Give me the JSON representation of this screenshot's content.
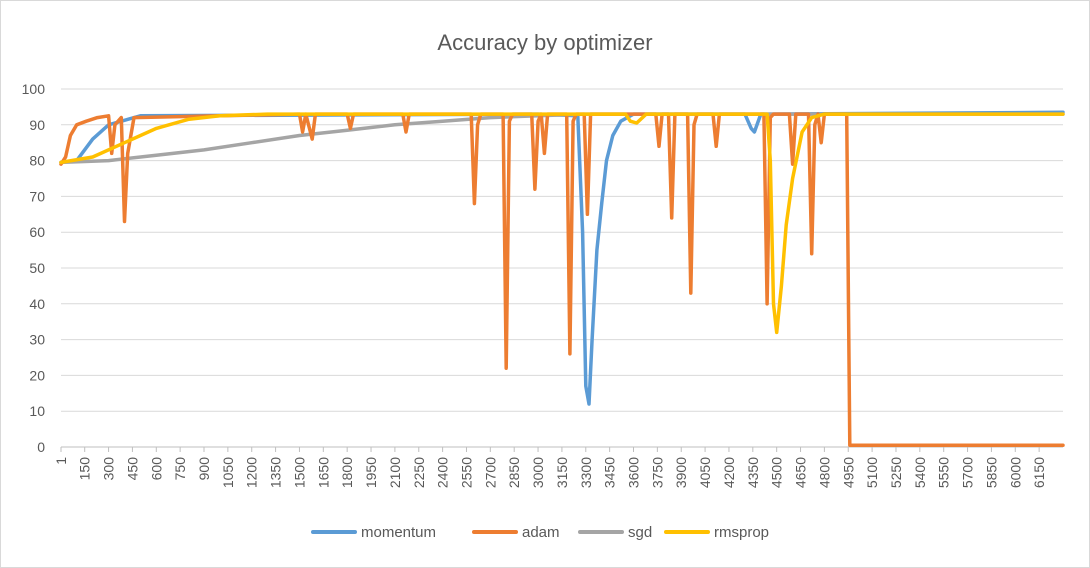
{
  "chart_data": {
    "type": "line",
    "title": "Accuracy by optimizer",
    "xlabel": "",
    "ylabel": "",
    "xlim": [
      1,
      6300
    ],
    "ylim": [
      0,
      100
    ],
    "y_ticks": [
      0,
      10,
      20,
      30,
      40,
      50,
      60,
      70,
      80,
      90,
      100
    ],
    "x_tick_labels": [
      "1",
      "150",
      "300",
      "450",
      "600",
      "750",
      "900",
      "1050",
      "1200",
      "1350",
      "1500",
      "1650",
      "1800",
      "1950",
      "2100",
      "2250",
      "2400",
      "2550",
      "2700",
      "2850",
      "3000",
      "3150",
      "3300",
      "3450",
      "3600",
      "3750",
      "3900",
      "4050",
      "4200",
      "4350",
      "4500",
      "4650",
      "4800",
      "4950",
      "5100",
      "5250",
      "5400",
      "5550",
      "5700",
      "5850",
      "6000",
      "6150"
    ],
    "grid": "horizontal",
    "legend": "bottom",
    "series": [
      {
        "name": "momentum",
        "color": "#5B9BD5",
        "points": [
          [
            1,
            79.5
          ],
          [
            100,
            80
          ],
          [
            200,
            86
          ],
          [
            300,
            90
          ],
          [
            500,
            92.5
          ],
          [
            3000,
            93
          ],
          [
            3250,
            92.5
          ],
          [
            3280,
            60
          ],
          [
            3300,
            17
          ],
          [
            3320,
            12
          ],
          [
            3340,
            30
          ],
          [
            3370,
            55
          ],
          [
            3400,
            68
          ],
          [
            3430,
            80
          ],
          [
            3470,
            87
          ],
          [
            3520,
            91
          ],
          [
            3600,
            93
          ],
          [
            4300,
            93
          ],
          [
            4340,
            89
          ],
          [
            4360,
            88
          ],
          [
            4400,
            93
          ],
          [
            6300,
            93.5
          ]
        ]
      },
      {
        "name": "adam",
        "color": "#ED7D31",
        "points": [
          [
            1,
            79
          ],
          [
            30,
            81
          ],
          [
            60,
            87
          ],
          [
            100,
            90
          ],
          [
            160,
            91
          ],
          [
            230,
            92
          ],
          [
            300,
            92.5
          ],
          [
            320,
            82
          ],
          [
            340,
            90
          ],
          [
            380,
            92
          ],
          [
            400,
            63
          ],
          [
            420,
            82
          ],
          [
            460,
            92
          ],
          [
            1500,
            93
          ],
          [
            1520,
            88
          ],
          [
            1540,
            93
          ],
          [
            1580,
            86
          ],
          [
            1600,
            93
          ],
          [
            1800,
            93
          ],
          [
            1820,
            89
          ],
          [
            1840,
            93
          ],
          [
            2150,
            93
          ],
          [
            2170,
            88
          ],
          [
            2190,
            93
          ],
          [
            2580,
            93
          ],
          [
            2600,
            68
          ],
          [
            2620,
            90
          ],
          [
            2640,
            93
          ],
          [
            2780,
            93
          ],
          [
            2800,
            22
          ],
          [
            2820,
            91
          ],
          [
            2840,
            93
          ],
          [
            2960,
            93
          ],
          [
            2980,
            72
          ],
          [
            3000,
            91
          ],
          [
            3020,
            93
          ],
          [
            3040,
            82
          ],
          [
            3060,
            93
          ],
          [
            3180,
            93
          ],
          [
            3200,
            26
          ],
          [
            3220,
            91
          ],
          [
            3240,
            93
          ],
          [
            3290,
            93
          ],
          [
            3310,
            65
          ],
          [
            3330,
            93
          ],
          [
            3740,
            93
          ],
          [
            3760,
            84
          ],
          [
            3780,
            93
          ],
          [
            3820,
            93
          ],
          [
            3840,
            64
          ],
          [
            3860,
            93
          ],
          [
            3940,
            93
          ],
          [
            3960,
            43
          ],
          [
            3980,
            90
          ],
          [
            4000,
            93
          ],
          [
            4100,
            93
          ],
          [
            4120,
            84
          ],
          [
            4140,
            93
          ],
          [
            4420,
            93
          ],
          [
            4440,
            40
          ],
          [
            4460,
            92
          ],
          [
            4480,
            93
          ],
          [
            4580,
            93
          ],
          [
            4600,
            79
          ],
          [
            4620,
            93
          ],
          [
            4700,
            93
          ],
          [
            4720,
            54
          ],
          [
            4740,
            90
          ],
          [
            4760,
            93
          ],
          [
            4780,
            85
          ],
          [
            4800,
            93
          ],
          [
            4900,
            93
          ],
          [
            4940,
            93
          ],
          [
            4960,
            0.5
          ],
          [
            6300,
            0.5
          ]
        ]
      },
      {
        "name": "sgd",
        "color": "#A5A5A5",
        "points": [
          [
            1,
            79.5
          ],
          [
            300,
            80
          ],
          [
            600,
            81.5
          ],
          [
            900,
            83
          ],
          [
            1200,
            85
          ],
          [
            1500,
            87
          ],
          [
            1800,
            88.5
          ],
          [
            2100,
            90
          ],
          [
            2400,
            91
          ],
          [
            2700,
            92
          ],
          [
            3000,
            92.5
          ],
          [
            3300,
            93
          ],
          [
            6300,
            93
          ]
        ]
      },
      {
        "name": "rmsprop",
        "color": "#FFC000",
        "points": [
          [
            1,
            79.5
          ],
          [
            200,
            81
          ],
          [
            400,
            85
          ],
          [
            600,
            89
          ],
          [
            800,
            91.5
          ],
          [
            1000,
            92.5
          ],
          [
            1300,
            93
          ],
          [
            3550,
            93
          ],
          [
            3580,
            91
          ],
          [
            3620,
            90.5
          ],
          [
            3680,
            93
          ],
          [
            4440,
            93
          ],
          [
            4460,
            80
          ],
          [
            4480,
            40
          ],
          [
            4500,
            32
          ],
          [
            4530,
            45
          ],
          [
            4560,
            62
          ],
          [
            4600,
            75
          ],
          [
            4660,
            88
          ],
          [
            4720,
            92
          ],
          [
            4800,
            93
          ],
          [
            6300,
            93
          ]
        ]
      }
    ]
  }
}
